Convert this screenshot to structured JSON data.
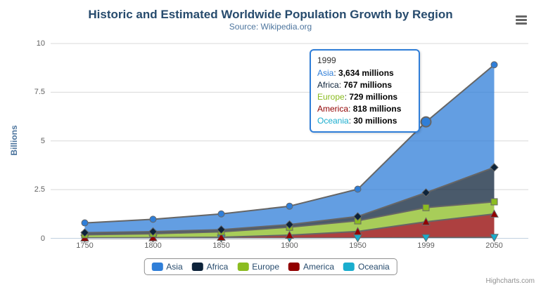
{
  "title": "Historic and Estimated Worldwide Population Growth by Region",
  "subtitle": "Source: Wikipedia.org",
  "credits": "Highcharts.com",
  "chart_data": {
    "type": "area",
    "stacking": "normal",
    "title": "Historic and Estimated Worldwide Population Growth by Region",
    "subtitle": "Source: Wikipedia.org",
    "categories": [
      "1750",
      "1800",
      "1850",
      "1900",
      "1950",
      "1999",
      "2050"
    ],
    "xlabel": "",
    "ylabel": "Billions",
    "ylim": [
      0,
      10
    ],
    "yticks": [
      0,
      2.5,
      5,
      7.5,
      10
    ],
    "grid": true,
    "legend_position": "bottom",
    "unit": "millions",
    "line_color": "#666666",
    "fill_opacity": 0.75,
    "series": [
      {
        "name": "Asia",
        "color": "#2f7ed8",
        "marker": "circle",
        "values": [
          502,
          635,
          809,
          947,
          1402,
          3634,
          5268
        ]
      },
      {
        "name": "Africa",
        "color": "#0d233a",
        "marker": "diamond",
        "values": [
          106,
          107,
          111,
          133,
          221,
          767,
          1766
        ]
      },
      {
        "name": "Europe",
        "color": "#8bbc21",
        "marker": "square",
        "values": [
          163,
          203,
          276,
          408,
          547,
          729,
          628
        ]
      },
      {
        "name": "America",
        "color": "#910000",
        "marker": "triangle",
        "values": [
          18,
          31,
          54,
          156,
          339,
          818,
          1201
        ]
      },
      {
        "name": "Oceania",
        "color": "#1aadce",
        "marker": "triangle-down",
        "values": [
          2,
          2,
          2,
          6,
          13,
          30,
          46
        ]
      }
    ],
    "stack_order_bottom_to_top": [
      "Oceania",
      "America",
      "Europe",
      "Africa",
      "Asia"
    ]
  },
  "tooltip": {
    "header": "1999",
    "border_color": "#2f7ed8",
    "rows": [
      {
        "name": "Asia",
        "value": "3,634 millions"
      },
      {
        "name": "Africa",
        "value": "767 millions"
      },
      {
        "name": "Europe",
        "value": "729 millions"
      },
      {
        "name": "America",
        "value": "818 millions"
      },
      {
        "name": "Oceania",
        "value": "30 millions"
      }
    ]
  },
  "hover": {
    "series": "Asia",
    "category": "1999"
  }
}
